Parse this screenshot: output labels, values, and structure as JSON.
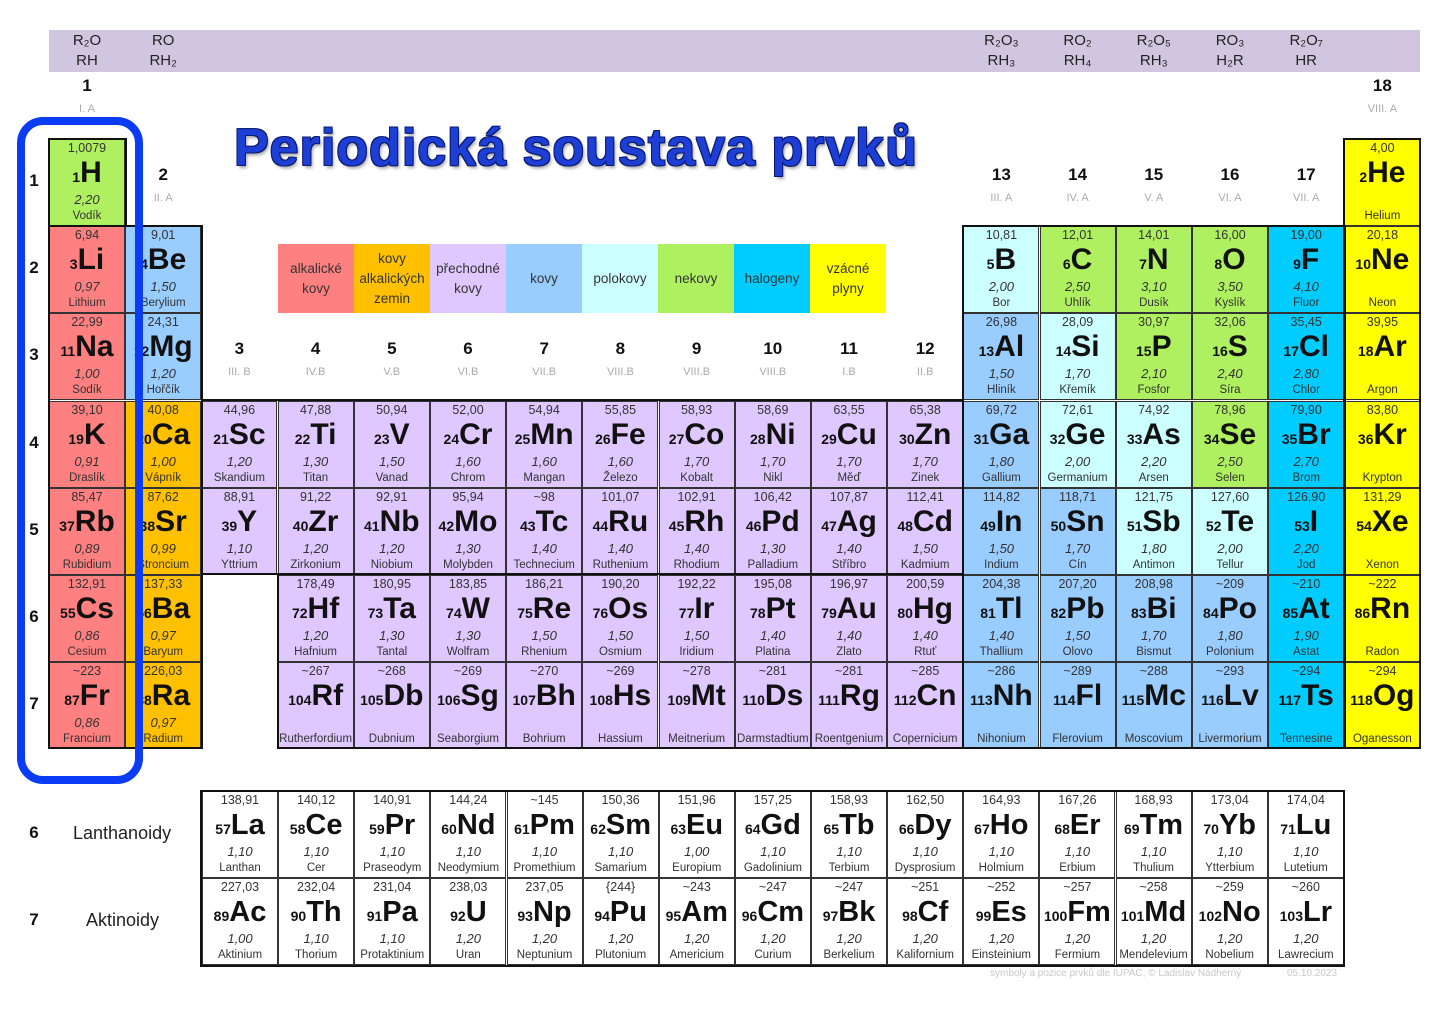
{
  "title": "Periodická soustava prvků",
  "oxides": [
    {
      "group": 1,
      "line1": "R₂O",
      "line2": "RH"
    },
    {
      "group": 2,
      "line1": "RO",
      "line2": "RH₂"
    },
    {
      "group": 13,
      "line1": "R₂O₃",
      "line2": "RH₃"
    },
    {
      "group": 14,
      "line1": "RO₂",
      "line2": "RH₄"
    },
    {
      "group": 15,
      "line1": "R₂O₅",
      "line2": "RH₃"
    },
    {
      "group": 16,
      "line1": "RO₃",
      "line2": "H₂R"
    },
    {
      "group": 17,
      "line1": "R₂O₇",
      "line2": "HR"
    }
  ],
  "groups": [
    {
      "num": "1",
      "roman": "I. A"
    },
    {
      "num": "2",
      "roman": "II. A"
    },
    {
      "num": "3",
      "roman": "III. B"
    },
    {
      "num": "4",
      "roman": "IV.B"
    },
    {
      "num": "5",
      "roman": "V.B"
    },
    {
      "num": "6",
      "roman": "VI.B"
    },
    {
      "num": "7",
      "roman": "VII.B"
    },
    {
      "num": "8",
      "roman": "VIII.B"
    },
    {
      "num": "9",
      "roman": "VIII.B"
    },
    {
      "num": "10",
      "roman": "VIII.B"
    },
    {
      "num": "11",
      "roman": "I.B"
    },
    {
      "num": "12",
      "roman": "II.B"
    },
    {
      "num": "13",
      "roman": "III. A"
    },
    {
      "num": "14",
      "roman": "IV. A"
    },
    {
      "num": "15",
      "roman": "V. A"
    },
    {
      "num": "16",
      "roman": "VI. A"
    },
    {
      "num": "17",
      "roman": "VII. A"
    },
    {
      "num": "18",
      "roman": "VIII. A"
    }
  ],
  "periods": [
    "1",
    "2",
    "3",
    "4",
    "5",
    "6",
    "7"
  ],
  "f_rows": [
    {
      "period": "6",
      "label": "Lanthanoidy"
    },
    {
      "period": "7",
      "label": "Aktinoidy"
    }
  ],
  "categories": {
    "a": {
      "label": "alkalické kovy",
      "color": "#ff8080"
    },
    "ae": {
      "label": "kovy alkalických zemin",
      "color": "#ffc000"
    },
    "t": {
      "label": "přechodné kovy",
      "color": "#dfc7ff"
    },
    "m": {
      "label": "kovy",
      "color": "#99ccff"
    },
    "ml": {
      "label": "polokovy",
      "color": "#ccffff"
    },
    "n": {
      "label": "nekovy",
      "color": "#aff060"
    },
    "h": {
      "label": "halogeny",
      "color": "#00ccff"
    },
    "g": {
      "label": "vzácné plyny",
      "color": "#ffff00"
    },
    "f": {
      "color": "#ffffff"
    }
  },
  "legend_order": [
    "a",
    "ae",
    "t",
    "m",
    "ml",
    "n",
    "h",
    "g"
  ],
  "highlight_color": "#0b3cf5",
  "elements": [
    [
      1,
      "H",
      "1,0079",
      "2,20",
      "Vodík",
      "n"
    ],
    [
      2,
      "He",
      "4,00",
      "",
      "Helium",
      "g"
    ],
    [
      3,
      "Li",
      "6,94",
      "0,97",
      "Lithium",
      "a"
    ],
    [
      4,
      "Be",
      "9,01",
      "1,50",
      "Berylium",
      "m"
    ],
    [
      5,
      "B",
      "10,81",
      "2,00",
      "Bor",
      "ml"
    ],
    [
      6,
      "C",
      "12,01",
      "2,50",
      "Uhlík",
      "n"
    ],
    [
      7,
      "N",
      "14,01",
      "3,10",
      "Dusík",
      "n"
    ],
    [
      8,
      "O",
      "16,00",
      "3,50",
      "Kyslík",
      "n"
    ],
    [
      9,
      "F",
      "19,00",
      "4,10",
      "Fluor",
      "h"
    ],
    [
      10,
      "Ne",
      "20,18",
      "",
      "Neon",
      "g"
    ],
    [
      11,
      "Na",
      "22,99",
      "1,00",
      "Sodík",
      "a"
    ],
    [
      12,
      "Mg",
      "24,31",
      "1,20",
      "Hořčík",
      "m"
    ],
    [
      13,
      "Al",
      "26,98",
      "1,50",
      "Hliník",
      "m"
    ],
    [
      14,
      "Si",
      "28,09",
      "1,70",
      "Křemík",
      "ml"
    ],
    [
      15,
      "P",
      "30,97",
      "2,10",
      "Fosfor",
      "n"
    ],
    [
      16,
      "S",
      "32,06",
      "2,40",
      "Síra",
      "n"
    ],
    [
      17,
      "Cl",
      "35,45",
      "2,80",
      "Chlor",
      "h"
    ],
    [
      18,
      "Ar",
      "39,95",
      "",
      "Argon",
      "g"
    ],
    [
      19,
      "K",
      "39,10",
      "0,91",
      "Draslík",
      "a"
    ],
    [
      20,
      "Ca",
      "40,08",
      "1,00",
      "Vápník",
      "ae"
    ],
    [
      21,
      "Sc",
      "44,96",
      "1,20",
      "Skandium",
      "t"
    ],
    [
      22,
      "Ti",
      "47,88",
      "1,30",
      "Titan",
      "t"
    ],
    [
      23,
      "V",
      "50,94",
      "1,50",
      "Vanad",
      "t"
    ],
    [
      24,
      "Cr",
      "52,00",
      "1,60",
      "Chrom",
      "t"
    ],
    [
      25,
      "Mn",
      "54,94",
      "1,60",
      "Mangan",
      "t"
    ],
    [
      26,
      "Fe",
      "55,85",
      "1,60",
      "Železo",
      "t"
    ],
    [
      27,
      "Co",
      "58,93",
      "1,70",
      "Kobalt",
      "t"
    ],
    [
      28,
      "Ni",
      "58,69",
      "1,70",
      "Nikl",
      "t"
    ],
    [
      29,
      "Cu",
      "63,55",
      "1,70",
      "Měď",
      "t"
    ],
    [
      30,
      "Zn",
      "65,38",
      "1,70",
      "Zinek",
      "t"
    ],
    [
      31,
      "Ga",
      "69,72",
      "1,80",
      "Gallium",
      "m"
    ],
    [
      32,
      "Ge",
      "72,61",
      "2,00",
      "Germanium",
      "ml"
    ],
    [
      33,
      "As",
      "74,92",
      "2,20",
      "Arsen",
      "ml"
    ],
    [
      34,
      "Se",
      "78,96",
      "2,50",
      "Selen",
      "n"
    ],
    [
      35,
      "Br",
      "79,90",
      "2,70",
      "Brom",
      "h"
    ],
    [
      36,
      "Kr",
      "83,80",
      "",
      "Krypton",
      "g"
    ],
    [
      37,
      "Rb",
      "85,47",
      "0,89",
      "Rubidium",
      "a"
    ],
    [
      38,
      "Sr",
      "87,62",
      "0,99",
      "Stroncium",
      "ae"
    ],
    [
      39,
      "Y",
      "88,91",
      "1,10",
      "Yttrium",
      "t"
    ],
    [
      40,
      "Zr",
      "91,22",
      "1,20",
      "Zirkonium",
      "t"
    ],
    [
      41,
      "Nb",
      "92,91",
      "1,20",
      "Niobium",
      "t"
    ],
    [
      42,
      "Mo",
      "95,94",
      "1,30",
      "Molybden",
      "t"
    ],
    [
      43,
      "Tc",
      "~98",
      "1,40",
      "Technecium",
      "t"
    ],
    [
      44,
      "Ru",
      "101,07",
      "1,40",
      "Ruthenium",
      "t"
    ],
    [
      45,
      "Rh",
      "102,91",
      "1,40",
      "Rhodium",
      "t"
    ],
    [
      46,
      "Pd",
      "106,42",
      "1,30",
      "Palladium",
      "t"
    ],
    [
      47,
      "Ag",
      "107,87",
      "1,40",
      "Stříbro",
      "t"
    ],
    [
      48,
      "Cd",
      "112,41",
      "1,50",
      "Kadmium",
      "t"
    ],
    [
      49,
      "In",
      "114,82",
      "1,50",
      "Indium",
      "m"
    ],
    [
      50,
      "Sn",
      "118,71",
      "1,70",
      "Cín",
      "m"
    ],
    [
      51,
      "Sb",
      "121,75",
      "1,80",
      "Antimon",
      "ml"
    ],
    [
      52,
      "Te",
      "127,60",
      "2,00",
      "Tellur",
      "ml"
    ],
    [
      53,
      "I",
      "126,90",
      "2,20",
      "Jod",
      "h"
    ],
    [
      54,
      "Xe",
      "131,29",
      "",
      "Xenon",
      "g"
    ],
    [
      55,
      "Cs",
      "132,91",
      "0,86",
      "Cesium",
      "a"
    ],
    [
      56,
      "Ba",
      "137,33",
      "0,97",
      "Baryum",
      "ae"
    ],
    [
      57,
      "La",
      "138,91",
      "1,10",
      "Lanthan",
      "f"
    ],
    [
      58,
      "Ce",
      "140,12",
      "1,10",
      "Cer",
      "f"
    ],
    [
      59,
      "Pr",
      "140,91",
      "1,10",
      "Praseodym",
      "f"
    ],
    [
      60,
      "Nd",
      "144,24",
      "1,10",
      "Neodymium",
      "f"
    ],
    [
      61,
      "Pm",
      "~145",
      "1,10",
      "Promethium",
      "f"
    ],
    [
      62,
      "Sm",
      "150,36",
      "1,10",
      "Samarium",
      "f"
    ],
    [
      63,
      "Eu",
      "151,96",
      "1,00",
      "Europium",
      "f"
    ],
    [
      64,
      "Gd",
      "157,25",
      "1,10",
      "Gadolinium",
      "f"
    ],
    [
      65,
      "Tb",
      "158,93",
      "1,10",
      "Terbium",
      "f"
    ],
    [
      66,
      "Dy",
      "162,50",
      "1,10",
      "Dysprosium",
      "f"
    ],
    [
      67,
      "Ho",
      "164,93",
      "1,10",
      "Holmium",
      "f"
    ],
    [
      68,
      "Er",
      "167,26",
      "1,10",
      "Erbium",
      "f"
    ],
    [
      69,
      "Tm",
      "168,93",
      "1,10",
      "Thulium",
      "f"
    ],
    [
      70,
      "Yb",
      "173,04",
      "1,10",
      "Ytterbium",
      "f"
    ],
    [
      71,
      "Lu",
      "174,04",
      "1,10",
      "Lutetium",
      "f"
    ],
    [
      72,
      "Hf",
      "178,49",
      "1,20",
      "Hafnium",
      "t"
    ],
    [
      73,
      "Ta",
      "180,95",
      "1,30",
      "Tantal",
      "t"
    ],
    [
      74,
      "W",
      "183,85",
      "1,30",
      "Wolfram",
      "t"
    ],
    [
      75,
      "Re",
      "186,21",
      "1,50",
      "Rhenium",
      "t"
    ],
    [
      76,
      "Os",
      "190,20",
      "1,50",
      "Osmium",
      "t"
    ],
    [
      77,
      "Ir",
      "192,22",
      "1,50",
      "Iridium",
      "t"
    ],
    [
      78,
      "Pt",
      "195,08",
      "1,40",
      "Platina",
      "t"
    ],
    [
      79,
      "Au",
      "196,97",
      "1,40",
      "Zlato",
      "t"
    ],
    [
      80,
      "Hg",
      "200,59",
      "1,40",
      "Rtuť",
      "t"
    ],
    [
      81,
      "Tl",
      "204,38",
      "1,40",
      "Thallium",
      "m"
    ],
    [
      82,
      "Pb",
      "207,20",
      "1,50",
      "Olovo",
      "m"
    ],
    [
      83,
      "Bi",
      "208,98",
      "1,70",
      "Bismut",
      "m"
    ],
    [
      84,
      "Po",
      "~209",
      "1,80",
      "Polonium",
      "m"
    ],
    [
      85,
      "At",
      "~210",
      "1,90",
      "Astat",
      "h"
    ],
    [
      86,
      "Rn",
      "~222",
      "",
      "Radon",
      "g"
    ],
    [
      87,
      "Fr",
      "~223",
      "0,86",
      "Francium",
      "a"
    ],
    [
      88,
      "Ra",
      "226,03",
      "0,97",
      "Radium",
      "ae"
    ],
    [
      89,
      "Ac",
      "227,03",
      "1,00",
      "Aktinium",
      "f"
    ],
    [
      90,
      "Th",
      "232,04",
      "1,10",
      "Thorium",
      "f"
    ],
    [
      91,
      "Pa",
      "231,04",
      "1,10",
      "Protaktinium",
      "f"
    ],
    [
      92,
      "U",
      "238,03",
      "1,20",
      "Uran",
      "f"
    ],
    [
      93,
      "Np",
      "237,05",
      "1,20",
      "Neptunium",
      "f"
    ],
    [
      94,
      "Pu",
      "{244}",
      "1,20",
      "Plutonium",
      "f"
    ],
    [
      95,
      "Am",
      "~243",
      "1,20",
      "Americium",
      "f"
    ],
    [
      96,
      "Cm",
      "~247",
      "1,20",
      "Curium",
      "f"
    ],
    [
      97,
      "Bk",
      "~247",
      "1,20",
      "Berkelium",
      "f"
    ],
    [
      98,
      "Cf",
      "~251",
      "1,20",
      "Kalifornium",
      "f"
    ],
    [
      99,
      "Es",
      "~252",
      "1,20",
      "Einsteinium",
      "f"
    ],
    [
      100,
      "Fm",
      "~257",
      "1,20",
      "Fermium",
      "f"
    ],
    [
      101,
      "Md",
      "~258",
      "1,20",
      "Mendelevium",
      "f"
    ],
    [
      102,
      "No",
      "~259",
      "1,20",
      "Nobelium",
      "f"
    ],
    [
      103,
      "Lr",
      "~260",
      "1,20",
      "Lawrecium",
      "f"
    ],
    [
      104,
      "Rf",
      "~267",
      "",
      "Rutherfordium",
      "t"
    ],
    [
      105,
      "Db",
      "~268",
      "",
      "Dubnium",
      "t"
    ],
    [
      106,
      "Sg",
      "~269",
      "",
      "Seaborgium",
      "t"
    ],
    [
      107,
      "Bh",
      "~270",
      "",
      "Bohrium",
      "t"
    ],
    [
      108,
      "Hs",
      "~269",
      "",
      "Hassium",
      "t"
    ],
    [
      109,
      "Mt",
      "~278",
      "",
      "Meitnerium",
      "t"
    ],
    [
      110,
      "Ds",
      "~281",
      "",
      "Darmstadtium",
      "t"
    ],
    [
      111,
      "Rg",
      "~281",
      "",
      "Roentgenium",
      "t"
    ],
    [
      112,
      "Cn",
      "~285",
      "",
      "Copernicium",
      "t"
    ],
    [
      113,
      "Nh",
      "~286",
      "",
      "Nihonium",
      "m"
    ],
    [
      114,
      "Fl",
      "~289",
      "",
      "Flerovium",
      "m"
    ],
    [
      115,
      "Mc",
      "~288",
      "",
      "Moscovium",
      "m"
    ],
    [
      116,
      "Lv",
      "~293",
      "",
      "Livermorium",
      "m"
    ],
    [
      117,
      "Ts",
      "~294",
      "",
      "Tennesine",
      "h"
    ],
    [
      118,
      "Og",
      "~294",
      "",
      "Oganesson",
      "g"
    ]
  ],
  "footer": {
    "credit": "symboly a pozice prvků dle IUPAC, © Ladislav Nádherný",
    "date": "05.10.2023"
  }
}
